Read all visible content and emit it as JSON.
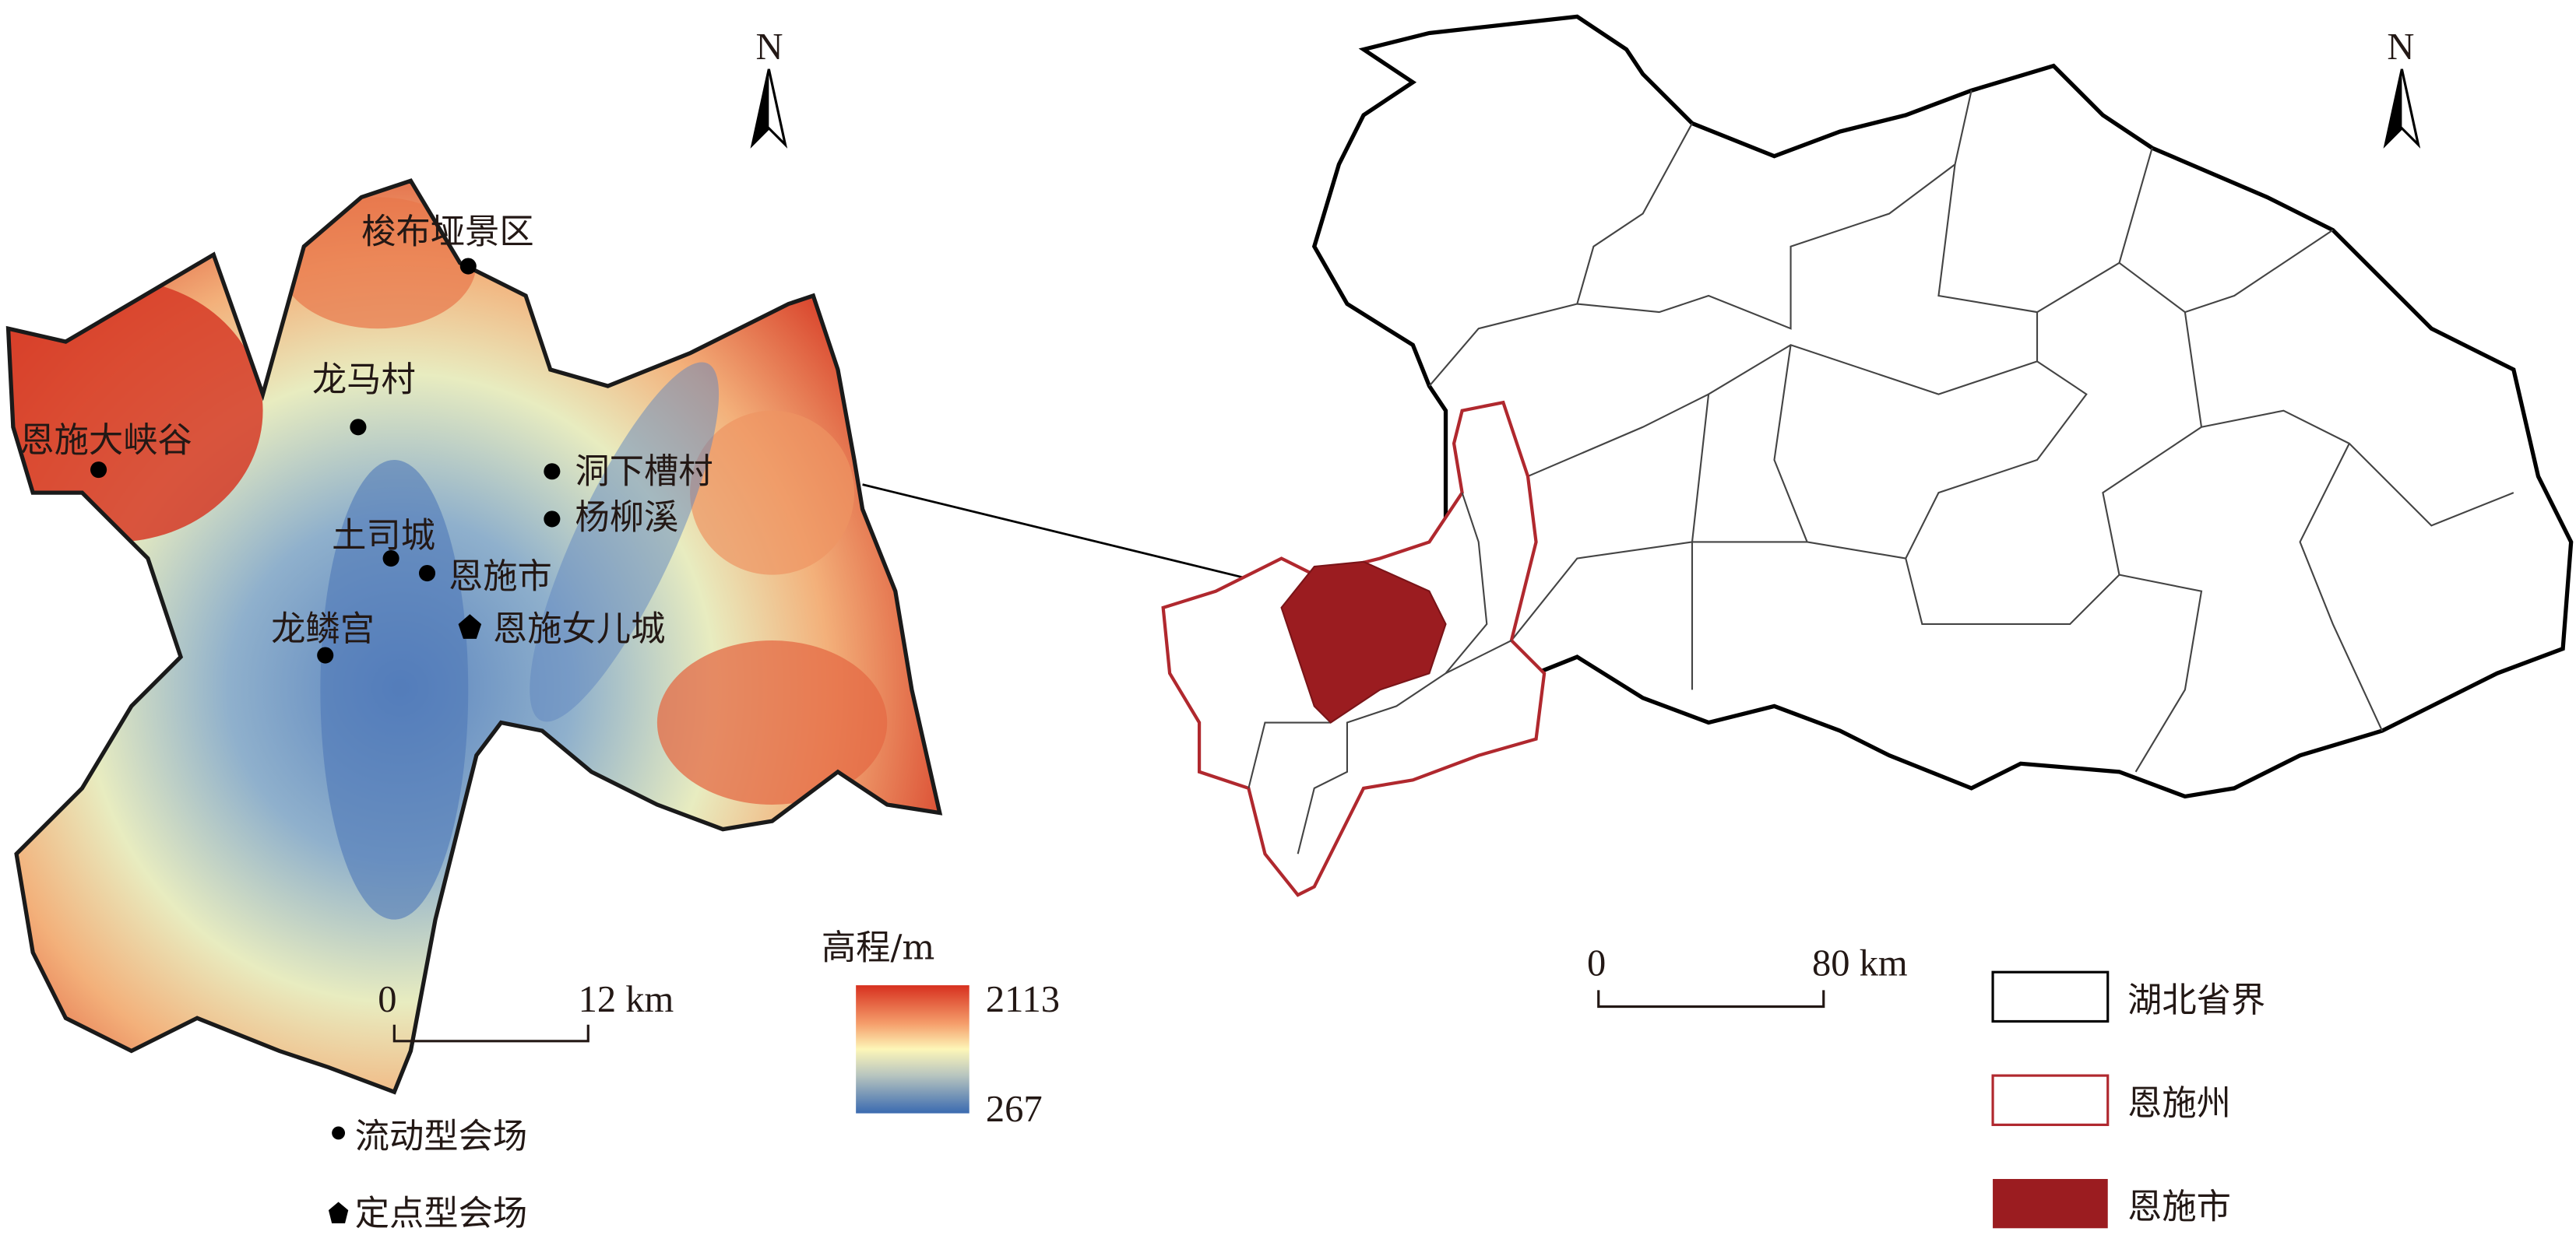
{
  "left_map": {
    "north_label": "N",
    "sites": [
      {
        "name": "梭布垭景区",
        "type": "mobile"
      },
      {
        "name": "龙马村",
        "type": "mobile"
      },
      {
        "name": "恩施大峡谷",
        "type": "mobile"
      },
      {
        "name": "洞下槽村",
        "type": "mobile"
      },
      {
        "name": "杨柳溪",
        "type": "mobile"
      },
      {
        "name": "土司城",
        "type": "mobile"
      },
      {
        "name": "恩施市",
        "type": "mobile"
      },
      {
        "name": "龙鳞宫",
        "type": "mobile"
      },
      {
        "name": "恩施女儿城",
        "type": "fixed"
      }
    ],
    "scale_bar": {
      "start": "0",
      "end": "12 km"
    },
    "elevation_legend": {
      "title": "高程/m",
      "max": "2113",
      "min": "267",
      "colors": [
        "#d7301f",
        "#f59e6b",
        "#fdf6b8",
        "#9fb4c0",
        "#3a6ab0"
      ]
    },
    "point_legend": [
      {
        "symbol": "dot",
        "label": "流动型会场"
      },
      {
        "symbol": "pentagon",
        "label": "定点型会场"
      }
    ]
  },
  "right_map": {
    "north_label": "N",
    "scale_bar": {
      "start": "0",
      "end": "80 km"
    },
    "legend": [
      {
        "label": "湖北省界",
        "style": "outline",
        "color": "#000000"
      },
      {
        "label": "恩施州",
        "style": "outline",
        "color": "#b0282e"
      },
      {
        "label": "恩施市",
        "style": "fill",
        "color": "#9b1c20"
      }
    ]
  }
}
